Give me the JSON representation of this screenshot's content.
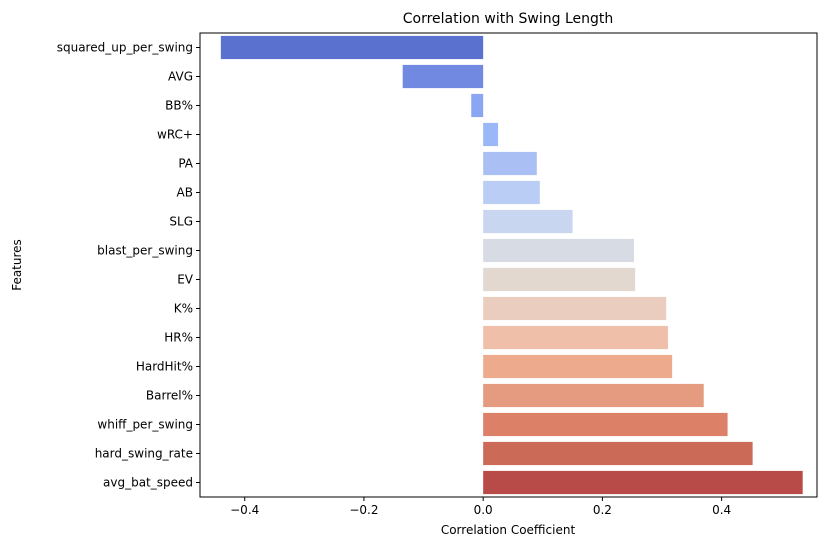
{
  "chart_data": {
    "type": "bar",
    "orientation": "horizontal",
    "title": "Correlation with Swing Length",
    "xlabel": "Correlation Coefficient",
    "ylabel": "Features",
    "xlim": [
      -0.475,
      0.56
    ],
    "xticks": [
      -0.4,
      -0.2,
      0.0,
      0.2,
      0.4
    ],
    "xtick_labels": [
      "−0.4",
      "−0.2",
      "0.0",
      "0.2",
      "0.4"
    ],
    "grid": false,
    "categories": [
      "squared_up_per_swing",
      "AVG",
      "BB%",
      "wRC+",
      "PA",
      "AB",
      "SLG",
      "blast_per_swing",
      "EV",
      "K%",
      "HR%",
      "HardHit%",
      "Barrel%",
      "whiff_per_swing",
      "hard_swing_rate",
      "avg_bat_speed"
    ],
    "values": [
      -0.44,
      -0.135,
      -0.02,
      0.025,
      0.09,
      0.095,
      0.15,
      0.253,
      0.255,
      0.307,
      0.31,
      0.317,
      0.37,
      0.41,
      0.452,
      0.536
    ],
    "colors": [
      "#5b71d0",
      "#7189e0",
      "#8aa6f2",
      "#9ab7f8",
      "#aac0f5",
      "#b9cdf5",
      "#c9d6ef",
      "#d7dbe3",
      "#e2d8d0",
      "#eacdbf",
      "#efbfa9",
      "#eeaa8c",
      "#e59b7f",
      "#dc8068",
      "#cc6a58",
      "#b84a47"
    ]
  }
}
